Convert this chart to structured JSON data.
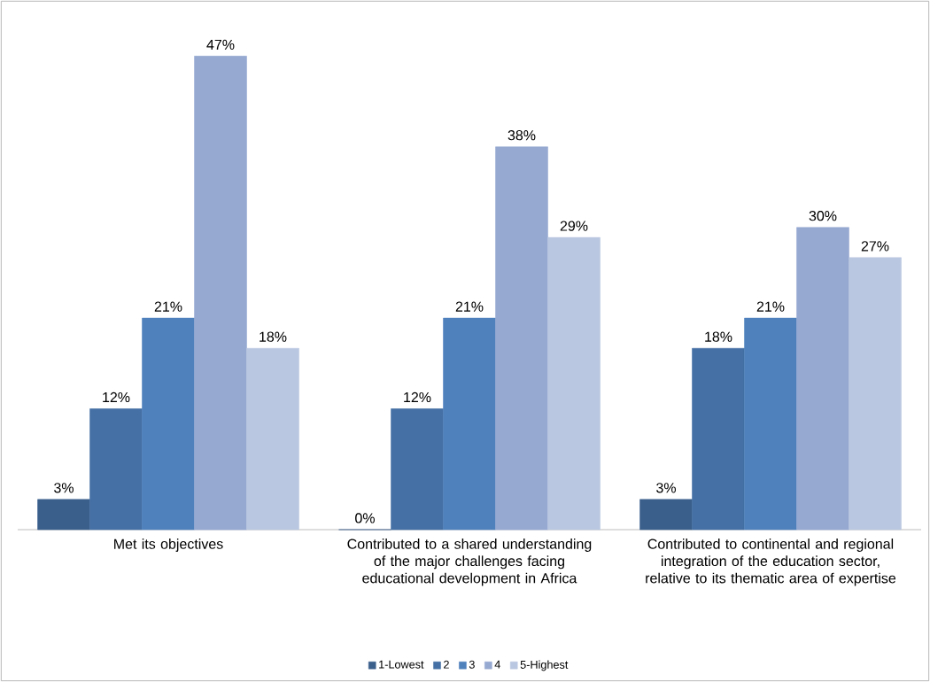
{
  "chart_data": {
    "type": "bar",
    "categories": [
      "Met its objectives",
      "Contributed to a shared understanding of the major challenges facing educational development in Africa",
      "Contributed to continental and regional integration of the education sector, relative to its thematic area of expertise"
    ],
    "series": [
      {
        "name": "1-Lowest",
        "color": "#3a5f8b",
        "values": [
          3,
          0,
          3
        ],
        "value_labels": [
          "3%",
          "0%",
          "3%"
        ]
      },
      {
        "name": "2",
        "color": "#4470a5",
        "values": [
          12,
          12,
          18
        ],
        "value_labels": [
          "12%",
          "12%",
          "18%"
        ]
      },
      {
        "name": "3",
        "color": "#4f81bd",
        "values": [
          21,
          21,
          21
        ],
        "value_labels": [
          "21%",
          "21%",
          "21%"
        ]
      },
      {
        "name": "4",
        "color": "#95a9d1",
        "values": [
          47,
          38,
          30
        ],
        "value_labels": [
          "47%",
          "38%",
          "30%"
        ]
      },
      {
        "name": "5-Highest",
        "color": "#bac7e0",
        "values": [
          18,
          29,
          27
        ],
        "value_labels": [
          "18%",
          "29%",
          "27%"
        ]
      }
    ],
    "legend": "bottom"
  }
}
